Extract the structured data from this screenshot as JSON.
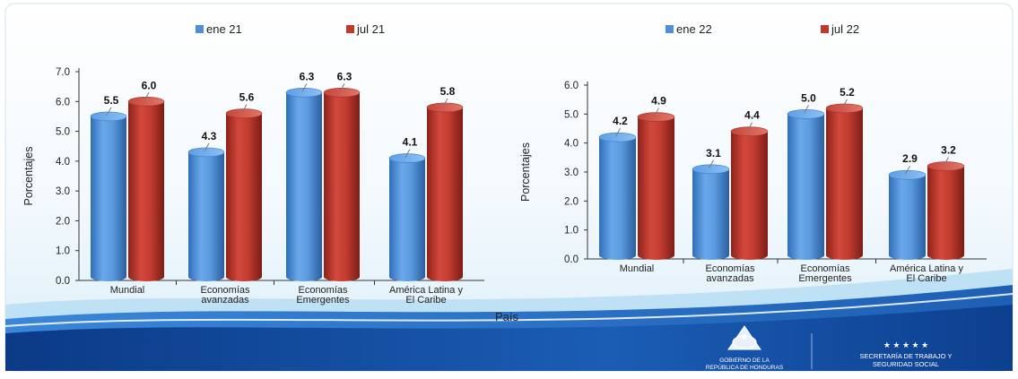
{
  "x_axis_title": "País",
  "footer": {
    "gov_line1": "GOBIERNO DE LA",
    "gov_line2": "REPÚBLICA DE HONDURAS",
    "secretaria_line1": "SECRETARÍA DE TRABAJO Y",
    "secretaria_line2": "SEGURIDAD SOCIAL",
    "stars": "★ ★ ★ ★ ★",
    "colors": {
      "wave_dark": "#0d3f8f",
      "wave_mid": "#2a74c9",
      "wave_light": "#9fd0f2",
      "footer_text": "#ffffff"
    }
  },
  "colors": {
    "blue_series": "#4f8fd8",
    "red_series": "#c0392b",
    "panel_bg": "#e9f4fb",
    "axis": "#333333"
  },
  "chart_data": [
    {
      "type": "bar",
      "categories": [
        [
          "Mundial"
        ],
        [
          "Economías",
          "avanzadas"
        ],
        [
          "Economías",
          "Emergentes"
        ],
        [
          "América Latina y",
          "El Caribe"
        ]
      ],
      "series": [
        {
          "name": "ene 21",
          "values": [
            5.5,
            4.3,
            6.3,
            4.1
          ],
          "labels": [
            "5.5",
            "4.3",
            "6.3",
            "4.1"
          ],
          "color": "#4f8fd8"
        },
        {
          "name": "jul 21",
          "values": [
            6.0,
            5.6,
            6.3,
            5.8
          ],
          "labels": [
            "6.0",
            "5.6",
            "6.3",
            "5.8"
          ],
          "color": "#c0392b"
        }
      ],
      "ylabel": "Porcentajes",
      "ylim": [
        0,
        7
      ],
      "yticks": [
        "0.0",
        "1.0",
        "2.0",
        "3.0",
        "4.0",
        "5.0",
        "6.0",
        "7.0"
      ],
      "grid": false,
      "legend": "top"
    },
    {
      "type": "bar",
      "categories": [
        [
          "Mundial"
        ],
        [
          "Economías",
          "avanzadas"
        ],
        [
          "Economías",
          "Emergentes"
        ],
        [
          "América Latina y",
          "El Caribe"
        ]
      ],
      "series": [
        {
          "name": "ene 22",
          "values": [
            4.2,
            3.1,
            5.0,
            2.9
          ],
          "labels": [
            "4.2",
            "3.1",
            "5.0",
            "2.9"
          ],
          "color": "#4f8fd8"
        },
        {
          "name": "jul 22",
          "values": [
            4.9,
            4.4,
            5.2,
            3.2
          ],
          "labels": [
            "4.9",
            "4.4",
            "5.2",
            "3.2"
          ],
          "color": "#c0392b"
        }
      ],
      "ylabel": "Porcentajes",
      "ylim": [
        0,
        6
      ],
      "yticks": [
        "0.0",
        "1.0",
        "2.0",
        "3.0",
        "4.0",
        "5.0",
        "6.0"
      ],
      "grid": false,
      "legend": "top"
    }
  ]
}
